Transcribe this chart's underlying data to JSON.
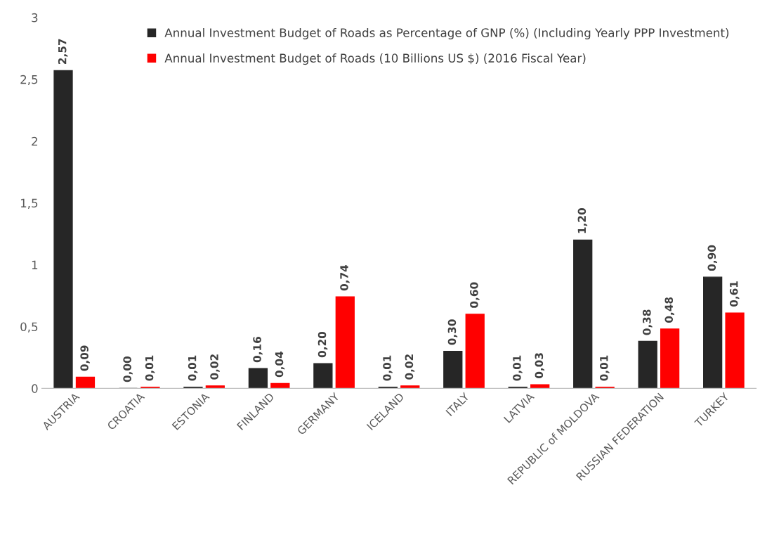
{
  "chart_data": {
    "type": "bar",
    "categories": [
      "AUSTRIA",
      "CROATIA",
      "ESTONIA",
      "FINLAND",
      "GERMANY",
      "ICELAND",
      "ITALY",
      "LATVIA",
      "REPUBLIC of MOLDOVA",
      "RUSSIAN FEDERATION",
      "TURKEY"
    ],
    "series": [
      {
        "name": "Annual Investment Budget of Roads as Percentage of GNP (%) (Including Yearly PPP Investment)",
        "color": "#262626",
        "values": [
          2.57,
          0.0,
          0.01,
          0.16,
          0.2,
          0.01,
          0.3,
          0.01,
          1.2,
          0.38,
          0.9
        ],
        "value_labels": [
          "2,57",
          "0,00",
          "0,01",
          "0,16",
          "0,20",
          "0,01",
          "0,30",
          "0,01",
          "1,20",
          "0,38",
          "0,90"
        ]
      },
      {
        "name": "Annual Investment Budget of Roads (10 Billions US $) (2016 Fiscal Year)",
        "color": "#ff0000",
        "values": [
          0.09,
          0.01,
          0.02,
          0.04,
          0.74,
          0.02,
          0.6,
          0.03,
          0.01,
          0.48,
          0.61
        ],
        "value_labels": [
          "0,09",
          "0,01",
          "0,02",
          "0,04",
          "0,74",
          "0,02",
          "0,60",
          "0,03",
          "0,01",
          "0,48",
          "0,61"
        ]
      }
    ],
    "ylim": [
      0,
      3
    ],
    "yticks": [
      0,
      {
        "value": 0.5,
        "label": "0,5"
      },
      1,
      {
        "value": 1.5,
        "label": "1,5"
      },
      2,
      {
        "value": 2.5,
        "label": "2,5"
      },
      3
    ],
    "grid": false,
    "legend": "top"
  }
}
